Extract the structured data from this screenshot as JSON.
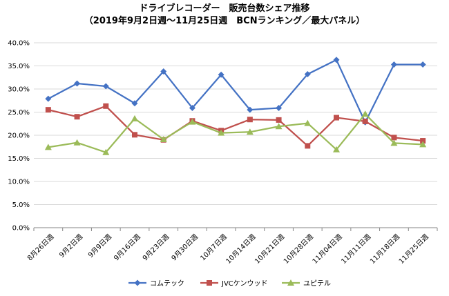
{
  "chart_data": {
    "type": "line",
    "title": "ドライブレコーダー　販売台数シェア推移",
    "subtitle": "（2019年9月2日週～11月25日週　BCNランキング／最大パネル）",
    "categories": [
      "8月26日週",
      "9月2日週",
      "9月9日週",
      "9月16日週",
      "9月23日週",
      "9月30日週",
      "10月7日週",
      "10月14日週",
      "10月21日週",
      "10月28日週",
      "11月04日週",
      "11月11日週",
      "11月18日週",
      "11月25日週"
    ],
    "series": [
      {
        "name": "コムテック",
        "color": "#4472C4",
        "marker": "diamond",
        "values": [
          27.9,
          31.2,
          30.6,
          26.9,
          33.8,
          25.9,
          33.1,
          25.5,
          25.9,
          33.2,
          36.3,
          22.8,
          35.3,
          35.3
        ]
      },
      {
        "name": "JVCケンウッド",
        "color": "#C0504D",
        "marker": "square",
        "values": [
          25.5,
          24.0,
          26.3,
          20.1,
          19.0,
          23.1,
          21.0,
          23.4,
          23.3,
          17.7,
          23.8,
          23.0,
          19.5,
          18.8
        ]
      },
      {
        "name": "ユピテル",
        "color": "#9BBB59",
        "marker": "triangle",
        "values": [
          17.4,
          18.4,
          16.3,
          23.6,
          19.1,
          22.9,
          20.5,
          20.7,
          21.9,
          22.6,
          16.9,
          24.6,
          18.3,
          18.0
        ]
      }
    ],
    "yticks": [
      "0.0%",
      "5.0%",
      "10.0%",
      "15.0%",
      "20.0%",
      "25.0%",
      "30.0%",
      "35.0%",
      "40.0%"
    ],
    "ylim": [
      0,
      40
    ],
    "xlabel": "",
    "ylabel": "",
    "grid": true,
    "legend": "bottom"
  }
}
